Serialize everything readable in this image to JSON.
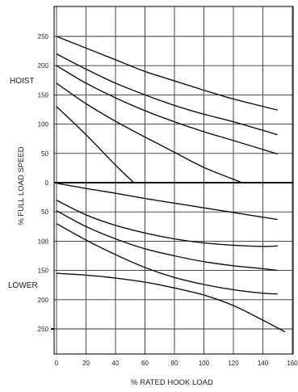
{
  "chart_data": {
    "type": "line",
    "title": "",
    "xlabel": "% RATED HOOK LOAD",
    "ylabel": "% FULL LOAD SPEED",
    "hoist_label": "HOIST",
    "lower_label": "LOWER",
    "xlim": [
      0,
      160
    ],
    "ylim": [
      -300,
      300
    ],
    "x_ticks": [
      0,
      20,
      40,
      60,
      80,
      100,
      120,
      140,
      160
    ],
    "x_tick_labels": [
      "0",
      "20",
      "40",
      "60",
      "80",
      "100",
      "120",
      "140",
      "160"
    ],
    "y_ticks": [
      250,
      200,
      150,
      100,
      50,
      0,
      -50,
      -100,
      -150,
      -200,
      -250
    ],
    "y_tick_labels": [
      "250",
      "200",
      "150",
      "100",
      "50",
      "0",
      "50",
      "100",
      "150",
      "200",
      "250"
    ],
    "grid": true,
    "legend": "none",
    "series": [
      {
        "x": [
          0,
          20,
          40,
          60,
          80,
          100,
          120,
          150
        ],
        "y": [
          250,
          230,
          210,
          190,
          174,
          158,
          143,
          124
        ]
      },
      {
        "x": [
          0,
          20,
          40,
          60,
          80,
          100,
          120,
          150
        ],
        "y": [
          220,
          194,
          170,
          150,
          132,
          117,
          104,
          82
        ]
      },
      {
        "x": [
          0,
          20,
          40,
          60,
          80,
          100,
          120,
          150
        ],
        "y": [
          200,
          170,
          145,
          123,
          104,
          87,
          72,
          49
        ]
      },
      {
        "x": [
          0,
          20,
          40,
          60,
          80,
          100,
          125
        ],
        "y": [
          170,
          135,
          105,
          78,
          52,
          26,
          1
        ]
      },
      {
        "x": [
          0,
          20,
          40,
          52
        ],
        "y": [
          130,
          82,
          30,
          1
        ]
      },
      {
        "x": [
          0,
          20,
          40,
          60,
          80,
          100,
          120,
          150
        ],
        "y": [
          -1,
          -10,
          -18,
          -27,
          -35,
          -43,
          -51,
          -63
        ]
      },
      {
        "x": [
          0,
          20,
          40,
          60,
          80,
          100,
          120,
          140,
          150
        ],
        "y": [
          -30,
          -55,
          -73,
          -86,
          -96,
          -103,
          -107,
          -109,
          -108
        ]
      },
      {
        "x": [
          0,
          20,
          40,
          60,
          80,
          100,
          120,
          140,
          150
        ],
        "y": [
          -48,
          -75,
          -96,
          -113,
          -125,
          -135,
          -142,
          -147,
          -150
        ]
      },
      {
        "x": [
          0,
          20,
          40,
          60,
          80,
          100,
          120,
          140,
          150
        ],
        "y": [
          -70,
          -98,
          -123,
          -145,
          -162,
          -174,
          -183,
          -189,
          -190
        ]
      },
      {
        "x": [
          0,
          20,
          40,
          60,
          80,
          100,
          120,
          140,
          155
        ],
        "y": [
          -155,
          -158,
          -163,
          -170,
          -180,
          -192,
          -210,
          -235,
          -255
        ]
      }
    ]
  }
}
